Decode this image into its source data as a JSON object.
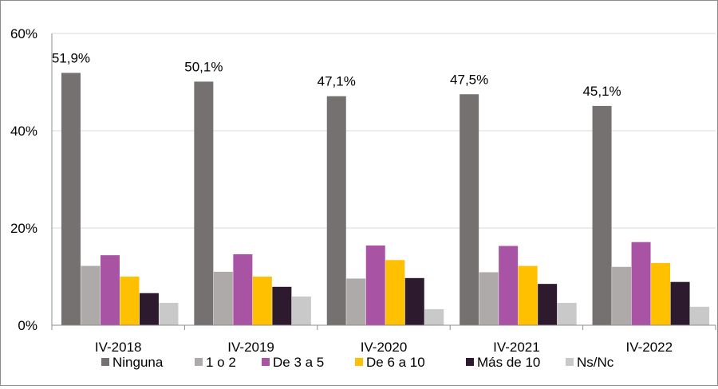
{
  "chart_data": {
    "type": "bar",
    "title": "",
    "xlabel": "",
    "ylabel": "",
    "categories": [
      "IV-2018",
      "IV-2019",
      "IV-2020",
      "IV-2021",
      "IV-2022"
    ],
    "ylim": [
      0,
      60
    ],
    "yticks": [
      "0%",
      "20%",
      "40%",
      "60%"
    ],
    "ytick_values": [
      0,
      20,
      40,
      60
    ],
    "grid": true,
    "legend": "bottom",
    "series": [
      {
        "name": "Ninguna",
        "color": "#767171",
        "values": [
          51.9,
          50.1,
          47.1,
          47.5,
          45.1
        ]
      },
      {
        "name": "1 o 2",
        "color": "#aeaaaa",
        "values": [
          12.2,
          11.0,
          9.6,
          10.9,
          12.0
        ]
      },
      {
        "name": "De 3 a 5",
        "color": "#a953a5",
        "values": [
          14.4,
          14.6,
          16.4,
          16.3,
          17.1
        ]
      },
      {
        "name": "De 6 a 10",
        "color": "#ffc000",
        "values": [
          10.0,
          10.0,
          13.4,
          12.2,
          12.8
        ]
      },
      {
        "name": "Más de 10",
        "color": "#2e1a2e",
        "values": [
          6.6,
          7.9,
          9.7,
          8.5,
          8.9
        ]
      },
      {
        "name": "Ns/Nc",
        "color": "#c9c9c9",
        "values": [
          4.6,
          5.9,
          3.3,
          4.6,
          3.8
        ]
      }
    ],
    "data_labels": [
      "51,9%",
      "50,1%",
      "47,1%",
      "47,5%",
      "45,1%"
    ]
  }
}
